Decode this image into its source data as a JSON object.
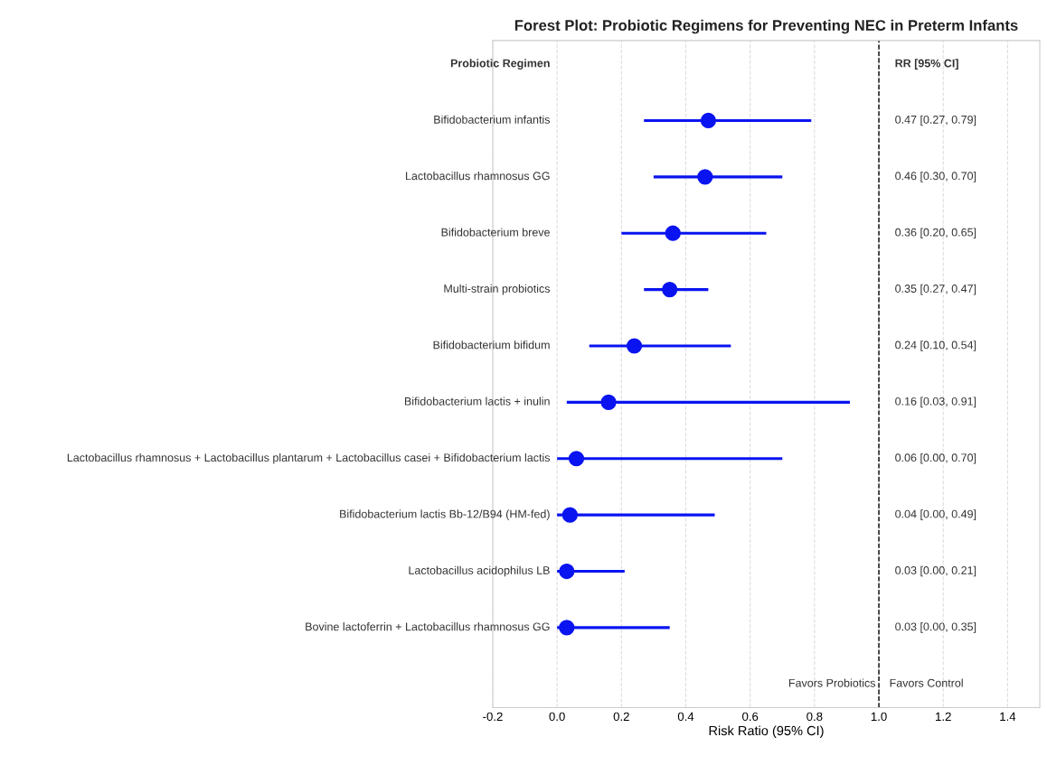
{
  "chart_data": {
    "type": "scatter",
    "orientation": "horizontal",
    "title": "Forest Plot: Probiotic Regimens for Preventing NEC in Preterm Infants",
    "xlabel": "Risk Ratio (95% CI)",
    "categories": [
      "Bifidobacterium infantis",
      "Lactobacillus rhamnosus GG",
      "Bifidobacterium breve",
      "Multi-strain probiotics",
      "Bifidobacterium bifidum",
      "Bifidobacterium lactis + inulin",
      "Lactobacillus rhamnosus + Lactobacillus plantarum + Lactobacillus casei + Bifidobacterium lactis",
      "Bifidobacterium lactis Bb-12/B94 (HM-fed)",
      "Lactobacillus acidophilus LB",
      "Bovine lactoferrin + Lactobacillus rhamnosus GG"
    ],
    "values": [
      0.47,
      0.46,
      0.36,
      0.35,
      0.24,
      0.16,
      0.06,
      0.04,
      0.03,
      0.03
    ],
    "errors": [
      [
        0.27,
        0.79
      ],
      [
        0.3,
        0.7
      ],
      [
        0.2,
        0.65
      ],
      [
        0.27,
        0.47
      ],
      [
        0.1,
        0.54
      ],
      [
        0.03,
        0.91
      ],
      [
        0.0,
        0.7
      ],
      [
        0.0,
        0.49
      ],
      [
        0.0,
        0.21
      ],
      [
        0.0,
        0.35
      ]
    ],
    "color": "#0a14f0",
    "marker": "circle",
    "xlim": [
      -0.2,
      1.5
    ],
    "xticks": [
      {
        "value": -0.2,
        "label": "-0.2"
      },
      {
        "value": 0,
        "label": "0.0"
      },
      0.2,
      0.4,
      0.6,
      0.8,
      {
        "value": 1,
        "label": "1.0"
      },
      1.2,
      1.4
    ],
    "ref_lines": [
      {
        "axis": "x",
        "value": 1.0,
        "color": "#000000",
        "line_style": "dashed"
      }
    ],
    "annotations": [
      "Probiotic Regimen",
      "RR [95% CI]",
      "Favors Probiotics",
      "Favors Control",
      "0.47 [0.27, 0.79]",
      "0.46 [0.30, 0.70]",
      "0.36 [0.20, 0.65]",
      "0.35 [0.27, 0.47]",
      "0.24 [0.10, 0.54]",
      "0.16 [0.03, 0.91]",
      "0.06 [0.00, 0.70]",
      "0.04 [0.00, 0.49]",
      "0.03 [0.00, 0.21]",
      "0.03 [0.00, 0.35]"
    ],
    "grid": "x"
  }
}
